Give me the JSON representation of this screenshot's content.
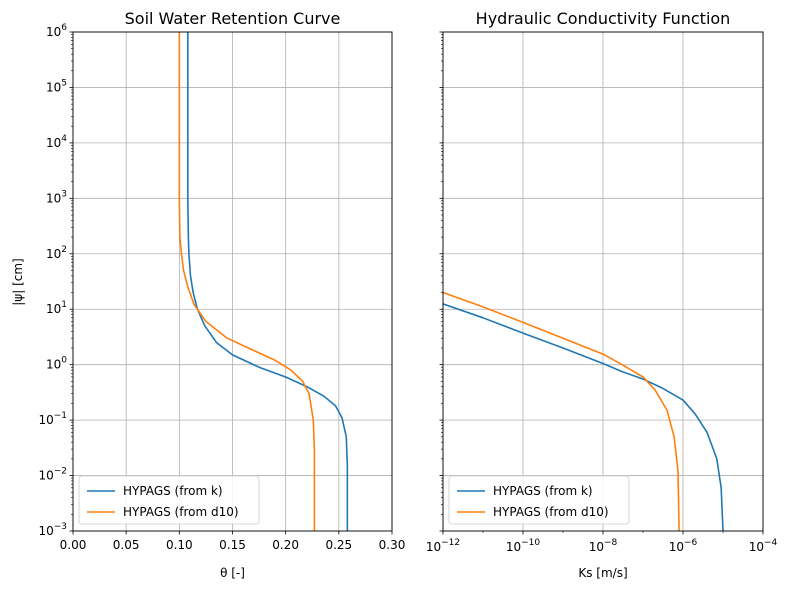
{
  "chart_data": [
    {
      "type": "line",
      "title": "Soil Water Retention Curve",
      "xlabel": "θ [-]",
      "ylabel": "|ψ| [cm]",
      "xscale": "linear",
      "yscale": "log",
      "xlim": [
        0.0,
        0.3
      ],
      "ylim": [
        0.001,
        1000000
      ],
      "grid": true,
      "legend": "lower-left",
      "x_ticks": [
        "0.00",
        "0.05",
        "0.10",
        "0.15",
        "0.20",
        "0.25",
        "0.30"
      ],
      "y_ticks": [
        {
          "base": "10",
          "exp": "−3"
        },
        {
          "base": "10",
          "exp": "−2"
        },
        {
          "base": "10",
          "exp": "−1"
        },
        {
          "base": "10",
          "exp": "0"
        },
        {
          "base": "10",
          "exp": "1"
        },
        {
          "base": "10",
          "exp": "2"
        },
        {
          "base": "10",
          "exp": "3"
        },
        {
          "base": "10",
          "exp": "4"
        },
        {
          "base": "10",
          "exp": "5"
        },
        {
          "base": "10",
          "exp": "6"
        }
      ],
      "series": [
        {
          "name": "HYPAGS (from k)",
          "color": "#1f77b4",
          "points": [
            [
              0.108,
              1000000
            ],
            [
              0.108,
              100000
            ],
            [
              0.108,
              10000
            ],
            [
              0.108,
              1000
            ],
            [
              0.1085,
              200
            ],
            [
              0.109,
              100
            ],
            [
              0.1105,
              40
            ],
            [
              0.113,
              20
            ],
            [
              0.117,
              10
            ],
            [
              0.124,
              5
            ],
            [
              0.135,
              2.5
            ],
            [
              0.15,
              1.5
            ],
            [
              0.175,
              0.9
            ],
            [
              0.2,
              0.6
            ],
            [
              0.22,
              0.4
            ],
            [
              0.236,
              0.27
            ],
            [
              0.247,
              0.18
            ],
            [
              0.253,
              0.11
            ],
            [
              0.257,
              0.05
            ],
            [
              0.258,
              0.015
            ],
            [
              0.258,
              0.001
            ]
          ]
        },
        {
          "name": "HYPAGS (from d10)",
          "color": "#ff7f0e",
          "points": [
            [
              0.1,
              1000000
            ],
            [
              0.1,
              100000
            ],
            [
              0.1,
              10000
            ],
            [
              0.1,
              1000
            ],
            [
              0.1005,
              200
            ],
            [
              0.102,
              100
            ],
            [
              0.104,
              50
            ],
            [
              0.108,
              25
            ],
            [
              0.114,
              12
            ],
            [
              0.125,
              6
            ],
            [
              0.145,
              3
            ],
            [
              0.17,
              1.8
            ],
            [
              0.19,
              1.2
            ],
            [
              0.205,
              0.8
            ],
            [
              0.216,
              0.5
            ],
            [
              0.222,
              0.3
            ],
            [
              0.226,
              0.1
            ],
            [
              0.227,
              0.03
            ],
            [
              0.227,
              0.001
            ]
          ]
        }
      ]
    },
    {
      "type": "line",
      "title": "Hydraulic Conductivity Function",
      "xlabel": "Ks [m/s]",
      "ylabel": "",
      "xscale": "log",
      "yscale": "log",
      "xlim": [
        1e-12,
        0.0001
      ],
      "ylim": [
        0.001,
        1000000
      ],
      "grid": true,
      "legend": "lower-left",
      "x_ticks": [
        {
          "value": 1e-12,
          "base": "10",
          "exp": "−12"
        },
        {
          "value": 1e-10,
          "base": "10",
          "exp": "−10"
        },
        {
          "value": 1e-08,
          "base": "10",
          "exp": "−8"
        },
        {
          "value": 1e-06,
          "base": "10",
          "exp": "−6"
        },
        {
          "value": 0.0001,
          "base": "10",
          "exp": "−4"
        }
      ],
      "series": [
        {
          "name": "HYPAGS (from k)",
          "color": "#1f77b4",
          "points": [
            [
              1e-12,
              12.5
            ],
            [
              1e-11,
              7
            ],
            [
              1e-10,
              3.7
            ],
            [
              1e-09,
              2
            ],
            [
              1e-08,
              1.05
            ],
            [
              3e-08,
              0.75
            ],
            [
              1e-07,
              0.55
            ],
            [
              3e-07,
              0.38
            ],
            [
              1e-06,
              0.23
            ],
            [
              2e-06,
              0.13
            ],
            [
              4e-06,
              0.06
            ],
            [
              7e-06,
              0.02
            ],
            [
              9e-06,
              0.006
            ],
            [
              1e-05,
              0.001
            ]
          ]
        },
        {
          "name": "HYPAGS (from d10)",
          "color": "#ff7f0e",
          "points": [
            [
              1e-12,
              20
            ],
            [
              1e-11,
              11
            ],
            [
              1e-10,
              5.8
            ],
            [
              1e-09,
              3
            ],
            [
              1e-08,
              1.55
            ],
            [
              3e-08,
              1.0
            ],
            [
              1e-07,
              0.6
            ],
            [
              2e-07,
              0.35
            ],
            [
              4e-07,
              0.15
            ],
            [
              6e-07,
              0.05
            ],
            [
              7.5e-07,
              0.012
            ],
            [
              8e-07,
              0.001
            ]
          ]
        }
      ]
    }
  ]
}
